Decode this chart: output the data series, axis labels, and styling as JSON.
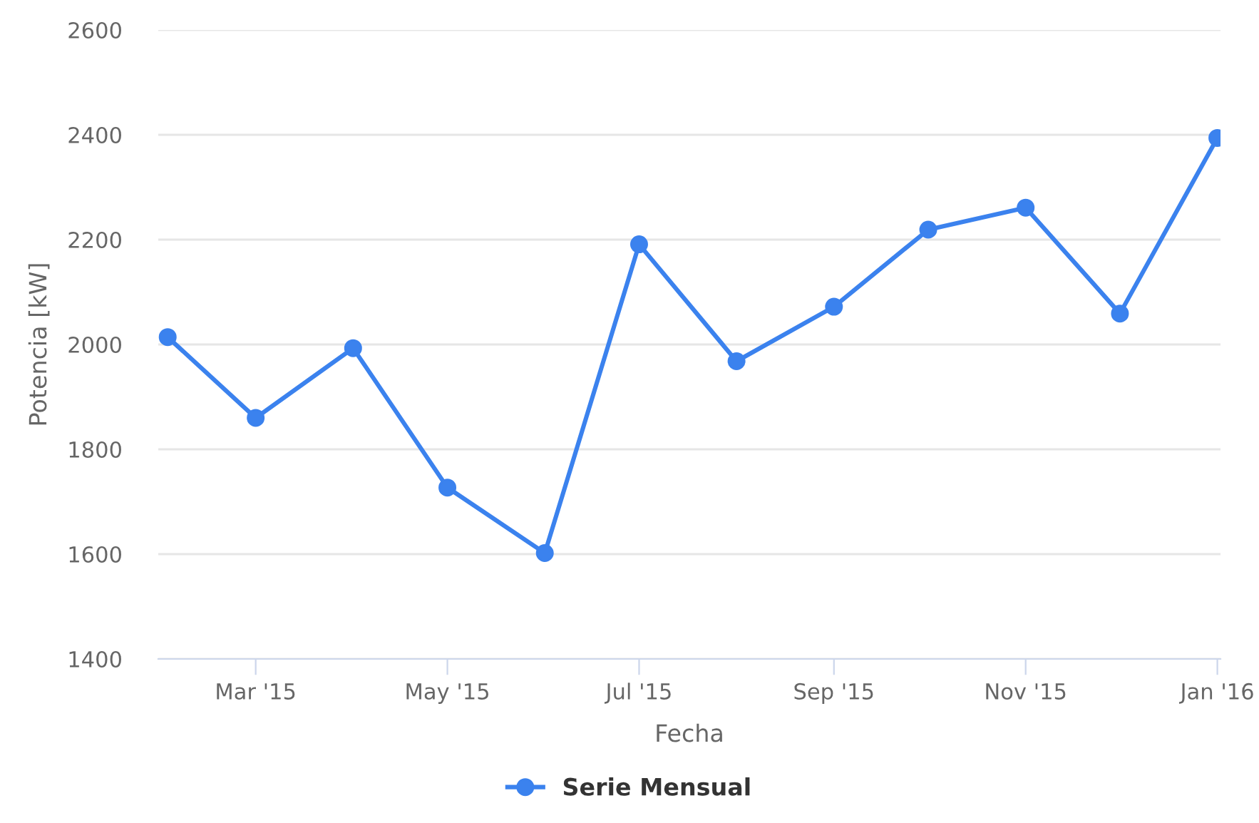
{
  "chart_data": {
    "type": "line",
    "xlabel": "Fecha",
    "ylabel": "Potencia [kW]",
    "x": [
      "2015-02-01",
      "2015-03-01",
      "2015-04-01",
      "2015-05-01",
      "2015-06-01",
      "2015-07-01",
      "2015-08-01",
      "2015-09-01",
      "2015-10-01",
      "2015-11-01",
      "2015-12-01",
      "2016-01-01"
    ],
    "series": [
      {
        "name": "Serie Mensual",
        "color": "#3b82ee",
        "values": [
          2014,
          1860,
          1993,
          1727,
          1602,
          2191,
          1968,
          2072,
          2219,
          2261,
          2059,
          2394
        ]
      }
    ],
    "xlim": [
      "2015-01-29",
      "2016-01-02"
    ],
    "xticks": [
      {
        "value": "2015-03-01",
        "label": "Mar '15"
      },
      {
        "value": "2015-05-01",
        "label": "May '15"
      },
      {
        "value": "2015-07-01",
        "label": "Jul '15"
      },
      {
        "value": "2015-09-01",
        "label": "Sep '15"
      },
      {
        "value": "2015-11-01",
        "label": "Nov '15"
      },
      {
        "value": "2016-01-01",
        "label": "Jan '16"
      }
    ],
    "ylim": [
      1400,
      2600
    ],
    "yticks": [
      1400,
      1600,
      1800,
      2000,
      2200,
      2400,
      2600
    ],
    "grid": "y",
    "legend": "bottom",
    "marker": "circle",
    "line_style": "solid"
  }
}
